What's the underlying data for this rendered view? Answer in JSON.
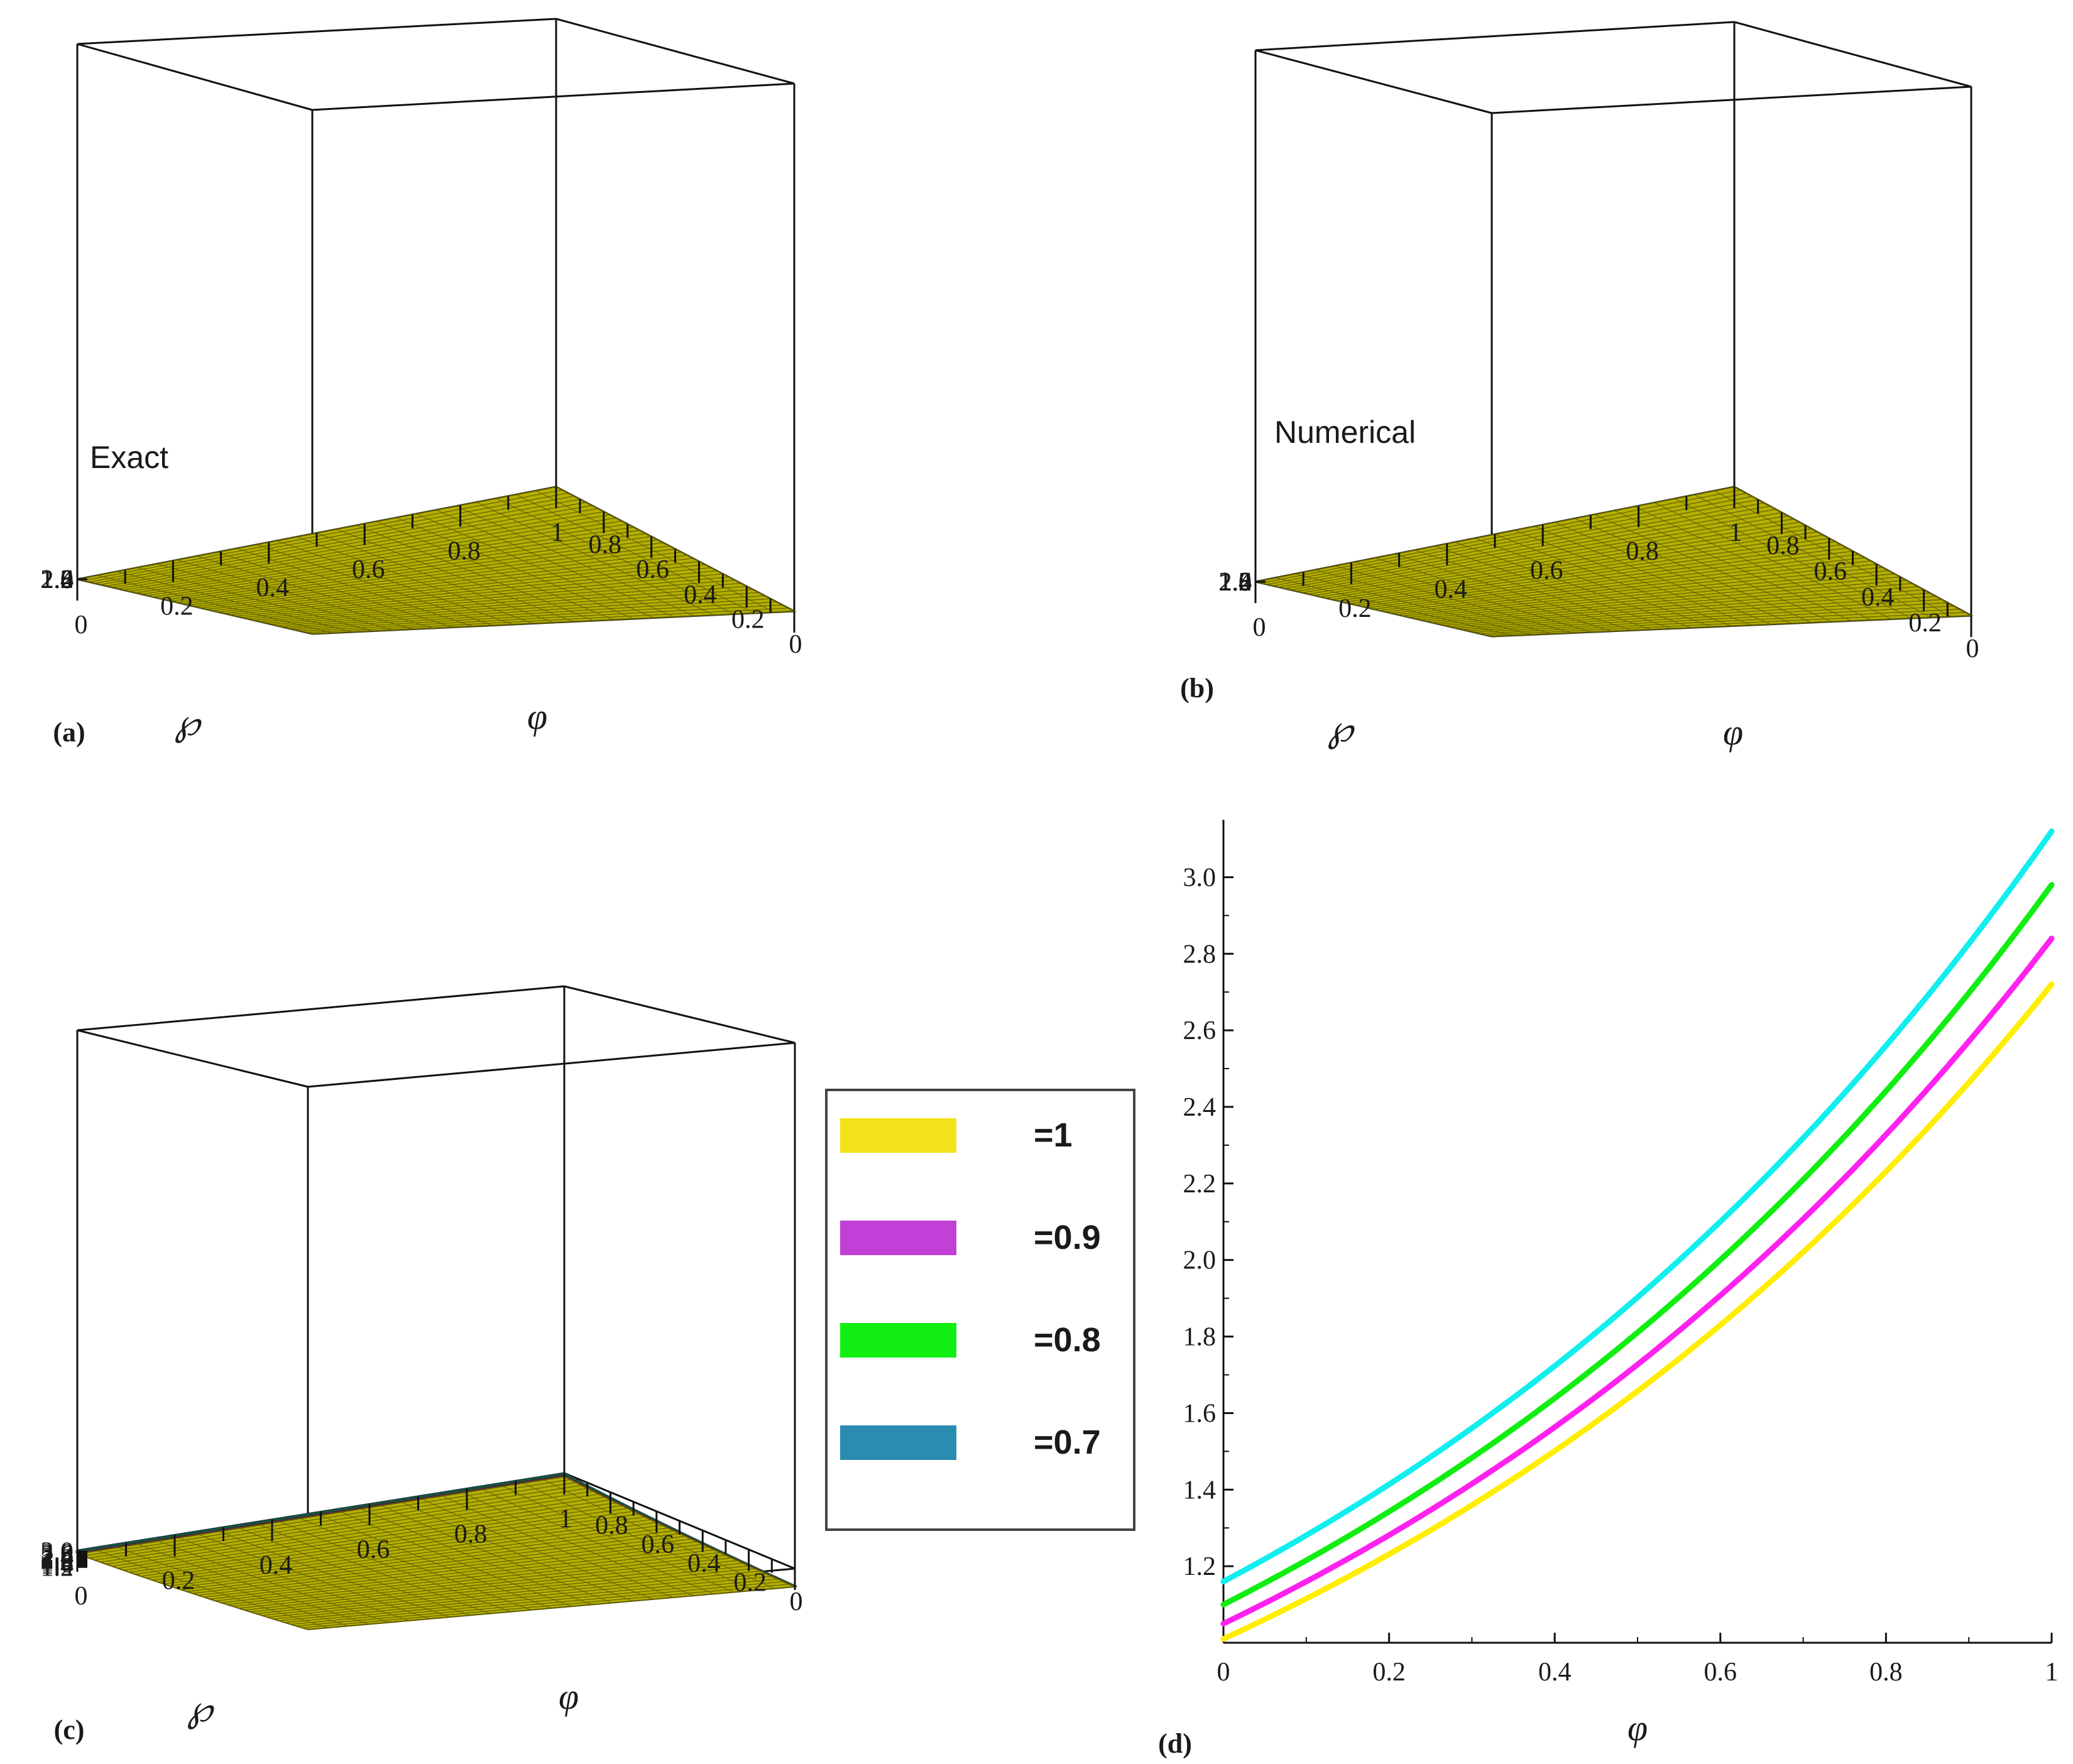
{
  "chart_data": [
    {
      "id": "a",
      "type": "surface3d",
      "panel_label": "(a)",
      "annotation": "Exact",
      "z_ticks": [
        "2.6",
        "2.4",
        "2.2",
        "2.0",
        "1.8",
        "1.6",
        "1.4",
        "1.2"
      ],
      "left_axis_ticks": [
        "0",
        "0.2",
        "0.4",
        "0.6",
        "0.8"
      ],
      "right_axis_ticks": [
        "1",
        "0.8",
        "0.6",
        "0.4",
        "0.2",
        "0"
      ],
      "left_axis_label": "℘",
      "right_axis_label": "φ",
      "zlim": [
        1.0,
        2.72
      ],
      "color": "#b5b000"
    },
    {
      "id": "b",
      "type": "surface3d",
      "panel_label": "(b)",
      "annotation": "Numerical",
      "z_ticks": [
        "2.6",
        "2.4",
        "2.2",
        "2.0",
        "1.8",
        "1.6",
        "1.4",
        "1.2"
      ],
      "left_axis_ticks": [
        "0",
        "0.2",
        "0.4",
        "0.6",
        "0.8"
      ],
      "right_axis_ticks": [
        "1",
        "0.8",
        "0.6",
        "0.4",
        "0.2",
        "0"
      ],
      "left_axis_label": "℘",
      "right_axis_label": "φ",
      "zlim": [
        1.0,
        2.72
      ],
      "color": "#b5b000"
    },
    {
      "id": "c",
      "type": "surface3d",
      "panel_label": "(c)",
      "z_ticks": [
        "3.0",
        "2.8",
        "2.6",
        "2.4",
        "2.2",
        "2.0",
        "1.8",
        "1.6",
        "1.4",
        "1.2"
      ],
      "left_axis_ticks": [
        "0",
        "0.2",
        "0.4",
        "0.6",
        "0.8"
      ],
      "right_axis_ticks": [
        "1",
        "0.8",
        "0.6",
        "0.4",
        "0.2",
        "0"
      ],
      "left_axis_label": "℘",
      "right_axis_label": "φ",
      "surfaces": [
        {
          "legend": "=0.7",
          "color": "#2b8aa8",
          "z_at_0": 1.16,
          "z_at_1": 3.12
        },
        {
          "legend": "=0.8",
          "color": "#1fb81f",
          "z_at_0": 1.11,
          "z_at_1": 2.97
        },
        {
          "legend": "=0.9",
          "color": "#a030b0",
          "z_at_0": 1.05,
          "z_at_1": 2.84
        },
        {
          "legend": "=1",
          "color": "#b5b000",
          "z_at_0": 1.0,
          "z_at_1": 2.72
        }
      ]
    },
    {
      "id": "d",
      "type": "line",
      "panel_label": "(d)",
      "xlabel": "φ",
      "xlim": [
        0,
        1
      ],
      "ylim": [
        1.0,
        3.15
      ],
      "x_ticks": [
        "0",
        "0.2",
        "0.4",
        "0.6",
        "0.8",
        "1"
      ],
      "y_ticks": [
        "3.0",
        "2.8",
        "2.6",
        "2.4",
        "2.2",
        "2.0",
        "1.8",
        "1.6",
        "1.4",
        "1.2"
      ],
      "series": [
        {
          "name": "=1",
          "color": "#ffee00",
          "x": [
            0,
            0.2,
            0.4,
            0.6,
            0.8,
            1
          ],
          "values": [
            1.01,
            1.23,
            1.5,
            1.83,
            2.23,
            2.72
          ]
        },
        {
          "name": "=0.9",
          "color": "#ff22ee",
          "x": [
            0,
            0.2,
            0.4,
            0.6,
            0.8,
            1
          ],
          "values": [
            1.05,
            1.28,
            1.56,
            1.9,
            2.32,
            2.84
          ]
        },
        {
          "name": "=0.8",
          "color": "#11ee11",
          "x": [
            0,
            0.2,
            0.4,
            0.6,
            0.8,
            1
          ],
          "values": [
            1.1,
            1.33,
            1.62,
            1.98,
            2.42,
            2.98
          ]
        },
        {
          "name": "=0.7",
          "color": "#11eeee",
          "x": [
            0,
            0.2,
            0.4,
            0.6,
            0.8,
            1
          ],
          "values": [
            1.16,
            1.4,
            1.7,
            2.07,
            2.54,
            3.12
          ]
        }
      ]
    }
  ],
  "legend": {
    "items": [
      {
        "label": "=1",
        "color": "#f2e21a"
      },
      {
        "label": "=0.9",
        "color": "#c040d8"
      },
      {
        "label": "=0.8",
        "color": "#11ee11"
      },
      {
        "label": "=0.7",
        "color": "#2a8cb0"
      }
    ]
  }
}
